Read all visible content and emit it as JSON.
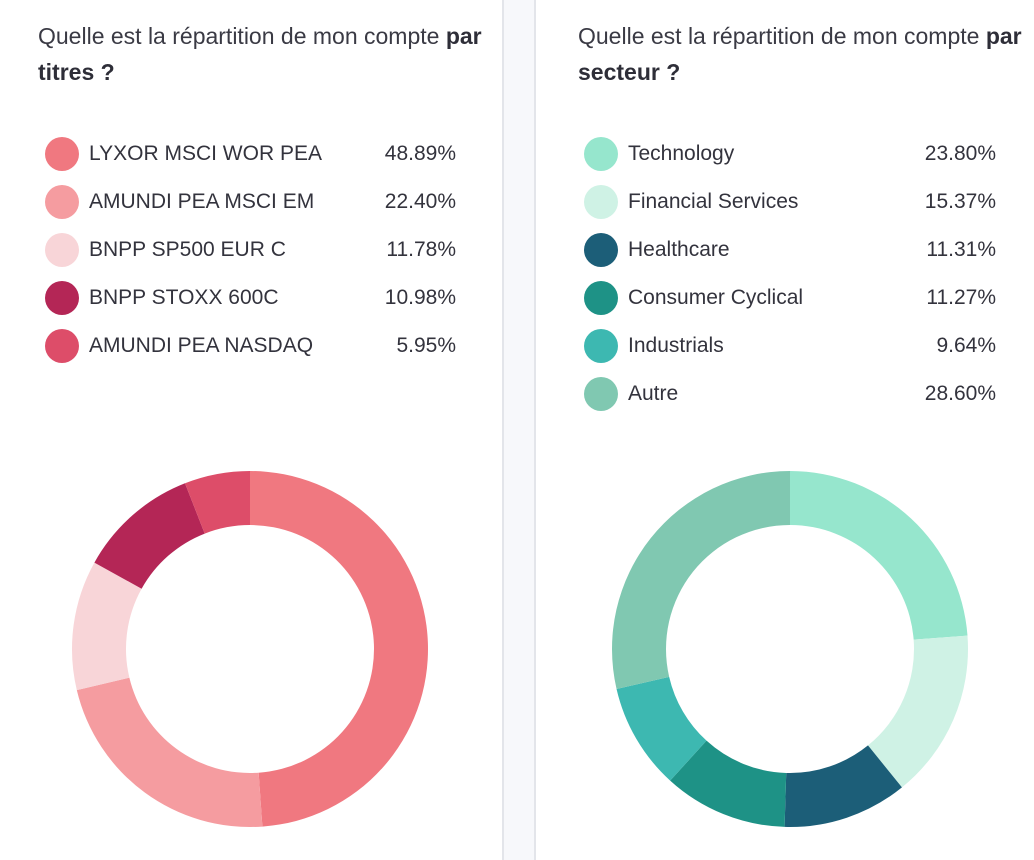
{
  "left": {
    "question_prefix": "Quelle est la répartition de mon compte ",
    "question_bold": "par titres ?",
    "items": [
      {
        "label": "LYXOR MSCI WOR PEA",
        "value": "48.89%",
        "color": "#f07880"
      },
      {
        "label": "AMUNDI PEA MSCI EM",
        "value": "22.40%",
        "color": "#f59ca0"
      },
      {
        "label": "BNPP SP500 EUR C",
        "value": "11.78%",
        "color": "#f8d5d8"
      },
      {
        "label": "BNPP STOXX 600C",
        "value": "10.98%",
        "color": "#b42656"
      },
      {
        "label": "AMUNDI PEA NASDAQ",
        "value": "5.95%",
        "color": "#dd4d69"
      }
    ]
  },
  "right": {
    "question_prefix": "Quelle est la répartition de mon compte ",
    "question_bold": "par secteur ?",
    "items": [
      {
        "label": "Technology",
        "value": "23.80%",
        "color": "#96e6cd"
      },
      {
        "label": "Financial Services",
        "value": "15.37%",
        "color": "#cff2e5"
      },
      {
        "label": "Healthcare",
        "value": "11.31%",
        "color": "#1c5e78"
      },
      {
        "label": "Consumer Cyclical",
        "value": "11.27%",
        "color": "#1e9286"
      },
      {
        "label": "Industrials",
        "value": "9.64%",
        "color": "#3db8b1"
      },
      {
        "label": "Autre",
        "value": "28.60%",
        "color": "#80c8b1"
      }
    ]
  },
  "chart_data": [
    {
      "type": "pie",
      "donut": true,
      "categories": [
        "LYXOR MSCI WOR PEA",
        "AMUNDI PEA MSCI EM",
        "BNPP SP500 EUR C",
        "BNPP STOXX 600C",
        "AMUNDI PEA NASDAQ"
      ],
      "values": [
        48.89,
        22.4,
        11.78,
        10.98,
        5.95
      ],
      "colors": [
        "#f07880",
        "#f59ca0",
        "#f8d5d8",
        "#b42656",
        "#dd4d69"
      ]
    },
    {
      "type": "pie",
      "donut": true,
      "categories": [
        "Technology",
        "Financial Services",
        "Healthcare",
        "Consumer Cyclical",
        "Industrials",
        "Autre"
      ],
      "values": [
        23.8,
        15.37,
        11.31,
        11.27,
        9.64,
        28.6
      ],
      "colors": [
        "#96e6cd",
        "#cff2e5",
        "#1c5e78",
        "#1e9286",
        "#3db8b1",
        "#80c8b1"
      ]
    }
  ]
}
